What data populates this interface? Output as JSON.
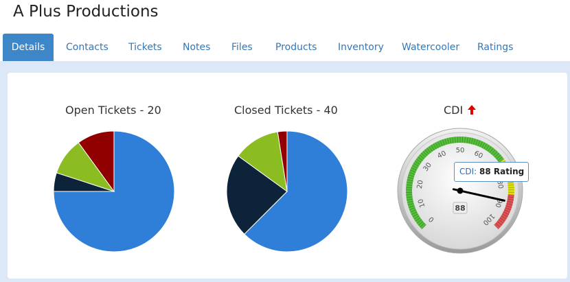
{
  "page": {
    "title": "A Plus Productions"
  },
  "tabs": [
    {
      "label": "Details",
      "active": true
    },
    {
      "label": "Contacts"
    },
    {
      "label": "Tickets"
    },
    {
      "label": "Notes"
    },
    {
      "label": "Files"
    },
    {
      "label": "Products"
    },
    {
      "label": "Inventory"
    },
    {
      "label": "Watercooler"
    },
    {
      "label": "Ratings"
    }
  ],
  "colors": {
    "blue": "#2f7ed8",
    "navy": "#0d233a",
    "green": "#8bbc21",
    "red": "#910000",
    "tab_active": "#3d87c9",
    "arrow_up": "#e00000"
  },
  "chart_data": [
    {
      "type": "pie",
      "title": "Open Tickets - 20",
      "values": [
        15,
        1,
        2,
        2
      ],
      "slice_colors": [
        "#2f7ed8",
        "#0d233a",
        "#8bbc21",
        "#910000"
      ]
    },
    {
      "type": "pie",
      "title": "Closed Tickets - 40",
      "values": [
        25,
        9,
        5,
        1
      ],
      "slice_colors": [
        "#2f7ed8",
        "#0d233a",
        "#8bbc21",
        "#910000"
      ]
    },
    {
      "type": "gauge",
      "title": "CDI",
      "trend_icon": "arrow-up-icon",
      "value": 88,
      "value_label": "88",
      "min": 0,
      "max": 100,
      "tick_labels": [
        "0",
        "10",
        "20",
        "30",
        "40",
        "50",
        "60",
        "70",
        "80",
        "90",
        "100"
      ],
      "bands": [
        {
          "from": 0,
          "to": 70,
          "color": "#55bf3b"
        },
        {
          "from": 70,
          "to": 85,
          "color": "#dddf0d"
        },
        {
          "from": 85,
          "to": 100,
          "color": "#df5353"
        }
      ],
      "tooltip": {
        "key": "CDI:",
        "value": "88 Rating"
      }
    }
  ]
}
